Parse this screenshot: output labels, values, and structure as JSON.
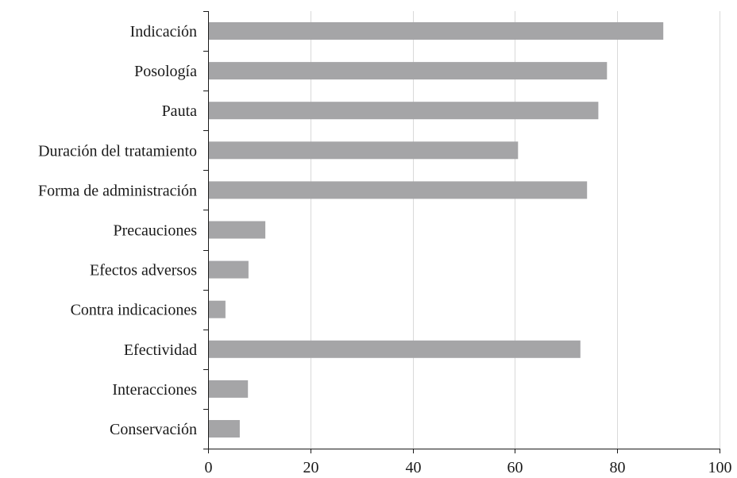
{
  "chart_data": {
    "type": "bar",
    "orientation": "horizontal",
    "categories": [
      "Indicación",
      "Posología",
      "Pauta",
      "Duración del tratamiento",
      "Forma de administración",
      "Precauciones",
      "Efectos adversos",
      "Contra indicaciones",
      "Efectividad",
      "Interacciones",
      "Conservación"
    ],
    "values": [
      89,
      78,
      76.3,
      60.6,
      74.1,
      11.2,
      7.9,
      3.4,
      72.8,
      7.8,
      6.2
    ],
    "xlim": [
      0,
      100
    ],
    "xticks": [
      0,
      20,
      40,
      60,
      80,
      100
    ],
    "xtick_labels": [
      "0",
      "20",
      "40",
      "60",
      "80",
      "100"
    ],
    "grid": "vertical",
    "legend": "none",
    "title": "",
    "xlabel": "",
    "ylabel": "",
    "colors": {
      "bar": "#a5a5a7",
      "grid": "#d9d9d9",
      "axis": "#1a1a1a",
      "text": "#1a1a1a"
    }
  }
}
